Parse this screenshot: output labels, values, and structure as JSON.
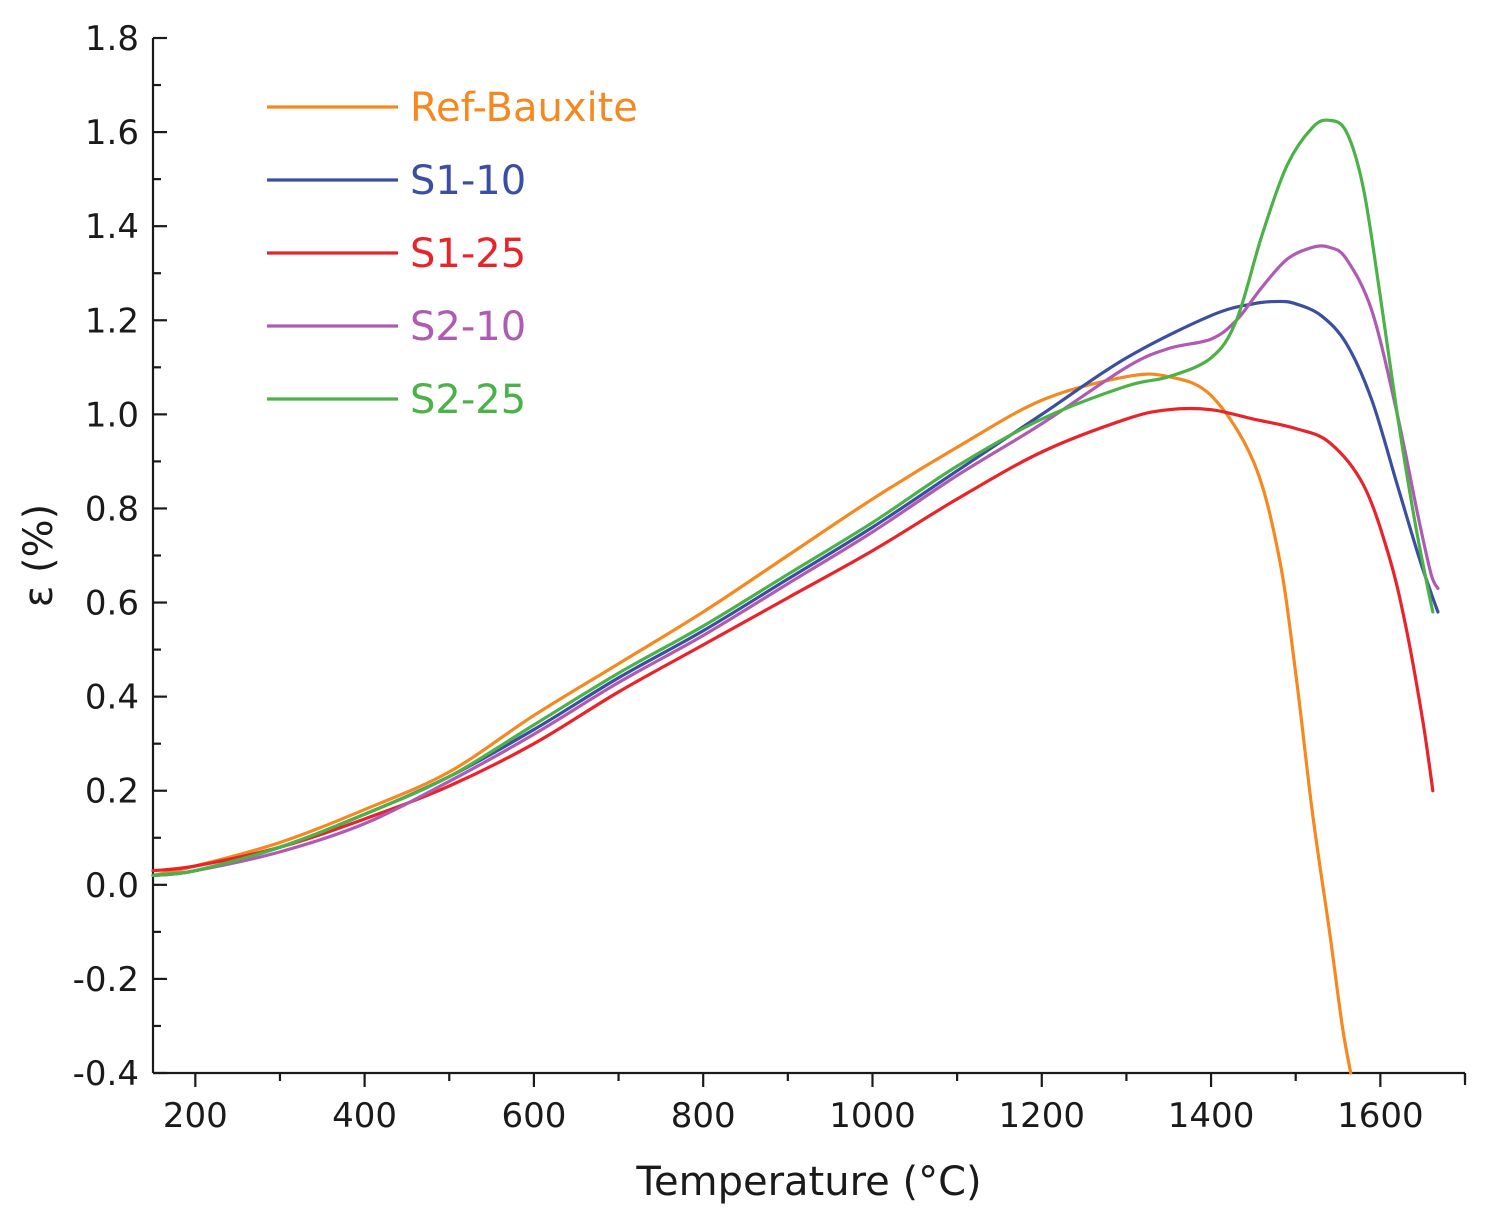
{
  "chart_data": {
    "type": "line",
    "xlabel": "Temperature (°C)",
    "ylabel": "ε (%)",
    "xlim": [
      150,
      1700
    ],
    "ylim": [
      -0.4,
      1.8
    ],
    "xticks": [
      200,
      400,
      600,
      800,
      1000,
      1200,
      1400,
      1600
    ],
    "xtick_labels": [
      "200",
      "400",
      "600",
      "800",
      "1000",
      "1200",
      "1400",
      "1600"
    ],
    "yticks": [
      -0.4,
      -0.2,
      0.0,
      0.2,
      0.4,
      0.6,
      0.8,
      1.0,
      1.2,
      1.4,
      1.6,
      1.8
    ],
    "ytick_labels": [
      "-0.4",
      "-0.2",
      "0.0",
      "0.2",
      "0.4",
      "0.6",
      "0.8",
      "1.0",
      "1.2",
      "1.4",
      "1.6",
      "1.8"
    ],
    "grid": false,
    "legend_position": "top-left",
    "series": [
      {
        "name": "Ref-Bauxite",
        "color": "#f5891f",
        "x": [
          150,
          200,
          300,
          400,
          500,
          600,
          700,
          800,
          900,
          1000,
          1100,
          1200,
          1300,
          1350,
          1400,
          1450,
          1480,
          1500,
          1520,
          1540,
          1555,
          1565
        ],
        "y": [
          0.02,
          0.04,
          0.09,
          0.16,
          0.24,
          0.36,
          0.47,
          0.58,
          0.7,
          0.82,
          0.93,
          1.03,
          1.08,
          1.08,
          1.04,
          0.9,
          0.7,
          0.45,
          0.15,
          -0.1,
          -0.3,
          -0.4
        ]
      },
      {
        "name": "S1-10",
        "color": "#3a4fa0",
        "x": [
          150,
          200,
          300,
          400,
          500,
          600,
          700,
          800,
          900,
          1000,
          1100,
          1200,
          1300,
          1400,
          1450,
          1480,
          1500,
          1530,
          1560,
          1590,
          1620,
          1645,
          1660,
          1668
        ],
        "y": [
          0.02,
          0.03,
          0.08,
          0.15,
          0.23,
          0.33,
          0.44,
          0.54,
          0.65,
          0.76,
          0.88,
          1.0,
          1.12,
          1.21,
          1.235,
          1.24,
          1.235,
          1.21,
          1.15,
          1.03,
          0.85,
          0.7,
          0.62,
          0.58
        ]
      },
      {
        "name": "S1-25",
        "color": "#e8242a",
        "x": [
          150,
          200,
          300,
          400,
          500,
          600,
          700,
          800,
          900,
          1000,
          1100,
          1200,
          1300,
          1350,
          1400,
          1450,
          1500,
          1540,
          1580,
          1610,
          1630,
          1650,
          1662
        ],
        "y": [
          0.03,
          0.04,
          0.08,
          0.14,
          0.21,
          0.3,
          0.41,
          0.51,
          0.61,
          0.71,
          0.82,
          0.92,
          0.99,
          1.01,
          1.01,
          0.99,
          0.97,
          0.94,
          0.85,
          0.7,
          0.55,
          0.35,
          0.2
        ]
      },
      {
        "name": "S2-10",
        "color": "#b05ab4",
        "x": [
          150,
          200,
          300,
          400,
          500,
          600,
          700,
          800,
          900,
          1000,
          1100,
          1200,
          1300,
          1350,
          1400,
          1430,
          1460,
          1490,
          1520,
          1540,
          1560,
          1590,
          1620,
          1645,
          1660,
          1668
        ],
        "y": [
          0.02,
          0.03,
          0.07,
          0.13,
          0.22,
          0.32,
          0.43,
          0.53,
          0.64,
          0.75,
          0.87,
          0.98,
          1.1,
          1.14,
          1.16,
          1.2,
          1.27,
          1.33,
          1.355,
          1.355,
          1.33,
          1.22,
          1.0,
          0.78,
          0.66,
          0.63
        ]
      },
      {
        "name": "S2-25",
        "color": "#4bb248",
        "x": [
          150,
          200,
          300,
          400,
          500,
          600,
          700,
          800,
          900,
          1000,
          1100,
          1200,
          1300,
          1350,
          1400,
          1430,
          1460,
          1490,
          1520,
          1540,
          1560,
          1580,
          1600,
          1620,
          1640,
          1655,
          1662
        ],
        "y": [
          0.02,
          0.03,
          0.08,
          0.15,
          0.23,
          0.34,
          0.45,
          0.55,
          0.66,
          0.77,
          0.89,
          0.99,
          1.06,
          1.08,
          1.12,
          1.2,
          1.38,
          1.53,
          1.61,
          1.625,
          1.6,
          1.48,
          1.25,
          1.0,
          0.78,
          0.64,
          0.58
        ]
      }
    ]
  }
}
